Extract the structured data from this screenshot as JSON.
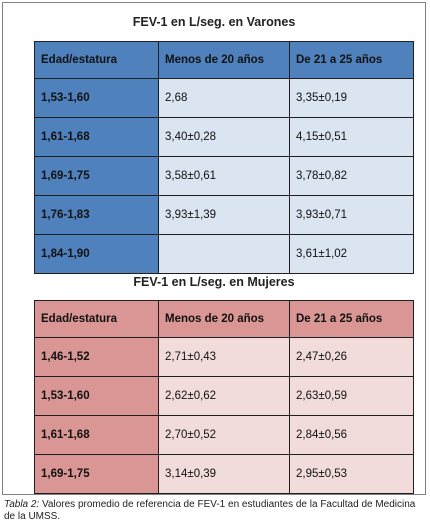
{
  "male": {
    "title": "FEV-1 en L/seg.  en Varones",
    "headers": [
      "Edad/estatura",
      "Menos de 20 años",
      "De 21 a 25 años"
    ],
    "rows": [
      [
        "1,53-1,60",
        "2,68",
        "3,35±0,19"
      ],
      [
        "1,61-1,68",
        "3,40±0,28",
        "4,15±0,51"
      ],
      [
        "1,69-1,75",
        "3,58±0,61",
        "3,78±0,82"
      ],
      [
        "1,76-1,83",
        "3,93±1,39",
        "3,93±0,71"
      ],
      [
        "1,84-1,90",
        "",
        "3,61±1,02"
      ]
    ]
  },
  "female": {
    "title": "FEV-1 en L/seg.  en  Mujeres",
    "headers": [
      "Edad/estatura",
      "Menos de 20 años",
      "De 21 a 25 años"
    ],
    "rows": [
      [
        "1,46-1,52",
        "2,71±0,43",
        "2,47±0,26"
      ],
      [
        "1,53-1,60",
        "2,62±0,62",
        "2,63±0,59"
      ],
      [
        "1,61-1,68",
        "2,70±0,52",
        "2,84±0,56"
      ],
      [
        "1,69-1,75",
        "3,14±0,39",
        "2,95±0,53"
      ]
    ]
  },
  "caption": {
    "label": "Tabla 2:",
    "text": " Valores promedio de referencia de FEV-1 en estudiantes de la Facultad de Medicina de la UMSS."
  },
  "colors": {
    "male_dark": "#4f81bd",
    "male_light": "#dbe5f1",
    "female_dark": "#d99694",
    "female_light": "#f2dcdb"
  }
}
